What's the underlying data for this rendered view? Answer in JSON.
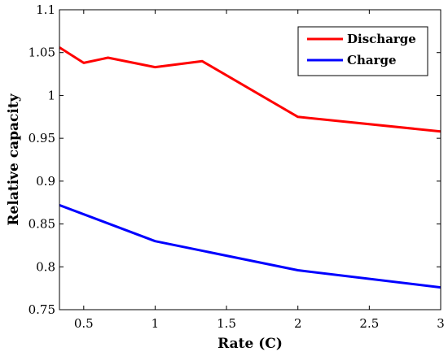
{
  "chart_data": {
    "type": "line",
    "title": "",
    "xlabel": "Rate (C)",
    "ylabel": "Relative capacity",
    "xlim": [
      0.33,
      3
    ],
    "ylim": [
      0.75,
      1.1
    ],
    "xticks": [
      0.5,
      1,
      1.5,
      2,
      2.5,
      3
    ],
    "xtick_labels": [
      "0.5",
      "1",
      "1.5",
      "2",
      "2.5",
      "3"
    ],
    "yticks": [
      0.75,
      0.8,
      0.85,
      0.9,
      0.95,
      1,
      1.05,
      1.1
    ],
    "ytick_labels": [
      "0.75",
      "0.8",
      "0.85",
      "0.9",
      "0.95",
      "1",
      "1.05",
      "1.1"
    ],
    "grid": false,
    "legend_position": "top-right",
    "series": [
      {
        "name": "Discharge",
        "color": "#ff0000",
        "x": [
          0.33,
          0.5,
          0.67,
          1,
          1.33,
          2,
          3
        ],
        "y": [
          1.056,
          1.038,
          1.044,
          1.033,
          1.04,
          0.975,
          0.958
        ]
      },
      {
        "name": "Charge",
        "color": "#0000ff",
        "x": [
          0.33,
          1,
          2,
          3
        ],
        "y": [
          0.872,
          0.83,
          0.796,
          0.776
        ]
      }
    ]
  }
}
